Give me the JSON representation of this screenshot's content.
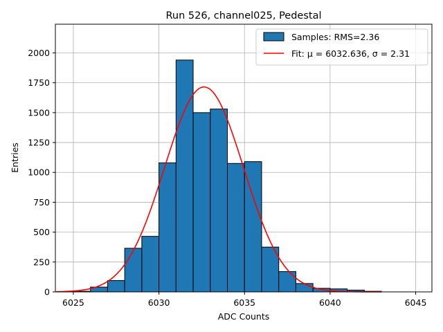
{
  "chart_data": {
    "type": "bar",
    "title": "Run 526, channel025, Pedestal",
    "xlabel": "ADC Counts",
    "ylabel": "Entries",
    "xlim": [
      6023.95,
      6045.95
    ],
    "ylim": [
      0,
      2240
    ],
    "xticks": [
      6025,
      6030,
      6035,
      6040,
      6045
    ],
    "yticks": [
      0,
      250,
      500,
      750,
      1000,
      1250,
      1500,
      1750,
      2000
    ],
    "grid": true,
    "legend_position": "top-right",
    "bins": {
      "edges": [
        6025,
        6026,
        6027,
        6028,
        6029,
        6030,
        6031,
        6032,
        6033,
        6034,
        6035,
        6036,
        6037,
        6038,
        6039,
        6040,
        6041,
        6042,
        6043
      ],
      "counts": [
        5,
        40,
        95,
        365,
        465,
        1080,
        1940,
        1500,
        1530,
        1075,
        1090,
        375,
        170,
        70,
        30,
        25,
        15,
        5
      ]
    },
    "fit": {
      "mu": 6032.636,
      "sigma": 2.31,
      "amplitude": 1715,
      "x_range": [
        6024,
        6043
      ]
    },
    "series": [
      {
        "name": "Samples: RMS=2.36",
        "type": "histogram",
        "color": "#1f77b4"
      },
      {
        "name": "Fit: μ = 6032.636, σ = 2.31",
        "type": "line",
        "color": "#ff0000"
      }
    ]
  }
}
